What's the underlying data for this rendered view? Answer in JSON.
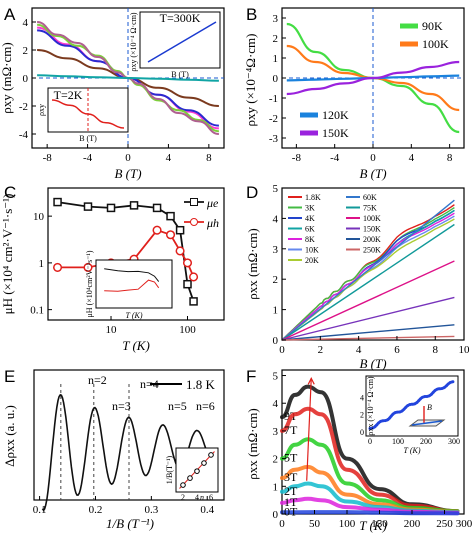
{
  "panels": {
    "A": {
      "label": "A",
      "xlabel": "B (T)",
      "ylabel": "ρxy (mΩ·cm)",
      "xticks": [
        "-8",
        "-4",
        "0",
        "4",
        "8"
      ],
      "yticks": [
        "4",
        "2",
        "0",
        "-2",
        "-4"
      ],
      "inset1": {
        "label": "T=300K",
        "xlabel": "B (T)",
        "ylabel": "ρxy (×10⁻⁴ Ω·cm)"
      },
      "inset2": {
        "label": "T=2K",
        "xlabel": "B (T)",
        "ylabel": "ρxy"
      }
    },
    "B": {
      "label": "B",
      "xlabel": "B (T)",
      "ylabel": "ρxy (×10⁻⁴Ω·cm)",
      "xticks": [
        "-8",
        "-4",
        "0",
        "4",
        "8"
      ],
      "yticks": [
        "3",
        "2",
        "1",
        "0",
        "-1",
        "-2",
        "-3"
      ]
    },
    "C": {
      "label": "C",
      "xlabel": "T (K)",
      "ylabel": "μH (×10⁴ cm²·V⁻¹·s⁻¹)",
      "xticks": [
        "10",
        "100"
      ],
      "yticks": [
        "10",
        "1",
        "0.1"
      ],
      "inset": {
        "xlabel": "T (K)",
        "ylabel": "μH (×10⁴cm²V⁻¹s⁻¹)",
        "xticks": [
          "10",
          "100"
        ]
      }
    },
    "D": {
      "label": "D",
      "xlabel": "B (T)",
      "ylabel": "ρxx (mΩ·cm)",
      "xticks": [
        "0",
        "2",
        "4",
        "6",
        "8",
        "10"
      ],
      "yticks": [
        "0",
        "1",
        "2",
        "3",
        "4",
        "5"
      ]
    },
    "E": {
      "label": "E",
      "xlabel": "1/B (T⁻¹)",
      "ylabel": "Δρxx (a. u.)",
      "xticks": [
        "0.1",
        "0.2",
        "0.3",
        "0.4"
      ],
      "scale": "1.8 K",
      "peaks": [
        "n=2",
        "n=3",
        "n=4",
        "n=5",
        "n=6"
      ],
      "inset": {
        "xlabel": "n",
        "ylabel": "1/B(T⁻¹)",
        "xticks": [
          "2",
          "4",
          "6"
        ],
        "yticks": [
          "0.4",
          "0.2"
        ]
      }
    },
    "F": {
      "label": "F",
      "xlabel": "T (K)",
      "ylabel": "ρxx (mΩ·cm)",
      "xticks": [
        "0",
        "50",
        "100",
        "150",
        "200",
        "250",
        "300"
      ],
      "yticks": [
        "0",
        "1",
        "2",
        "3",
        "4",
        "5"
      ],
      "inset": {
        "xlabel": "T (K)",
        "ylabel": "ρxx (×10⁻⁴ Ω·cm)",
        "xticks": [
          "0",
          "100",
          "200",
          "300"
        ],
        "yticks": [
          "4",
          "2",
          "0"
        ],
        "field": "B"
      }
    }
  },
  "chart_data": [
    {
      "panel": "A",
      "type": "line",
      "xlim": [
        -9.5,
        9.5
      ],
      "ylim": [
        -5,
        5
      ],
      "series": [
        {
          "color": "#7b3a1e",
          "x": [
            -9,
            -6,
            -3,
            0,
            3,
            6,
            9
          ],
          "y": [
            2.0,
            1.4,
            0.7,
            0,
            -0.7,
            -1.4,
            -2.0
          ]
        },
        {
          "color": "#ff3ad0",
          "x": [
            -9,
            -6,
            -3,
            0,
            3,
            6,
            9
          ],
          "y": [
            3.6,
            2.4,
            1.2,
            0,
            -1.2,
            -2.4,
            -3.6
          ]
        },
        {
          "color": "#2a2ad0",
          "x": [
            -9,
            -6,
            -3,
            0,
            3,
            6,
            9
          ],
          "y": [
            3.4,
            2.3,
            1.2,
            0,
            -1.2,
            -2.3,
            -3.4
          ]
        },
        {
          "color": "#7ecf3a",
          "x": [
            -9,
            -7,
            -5,
            -3,
            -1,
            0,
            1,
            3,
            5,
            7,
            9
          ],
          "y": [
            3.8,
            3.0,
            2.3,
            1.6,
            0.5,
            0,
            -0.5,
            -1.6,
            -2.3,
            -3.0,
            -3.8
          ]
        },
        {
          "color": "#b06090",
          "x": [
            -9,
            -7,
            -5,
            -3,
            -1,
            0,
            1,
            3,
            5,
            7,
            9
          ],
          "y": [
            4.0,
            3.1,
            2.5,
            1.5,
            0.4,
            0,
            -0.4,
            -1.5,
            -2.5,
            -3.1,
            -4.0
          ]
        },
        {
          "color": "#10a4a4",
          "x": [
            -9,
            -6,
            -3,
            0,
            3,
            6,
            9
          ],
          "y": [
            0.2,
            0.12,
            0.05,
            0,
            -0.05,
            -0.12,
            -0.2
          ]
        }
      ],
      "insets": [
        {
          "label": "T=300K",
          "type": "line",
          "series": [
            {
              "color": "#1a3ad0",
              "x": [
                -8,
                8
              ],
              "y": [
                -1,
                1
              ]
            }
          ]
        },
        {
          "label": "T=2K",
          "type": "line",
          "series": [
            {
              "color": "#e0201c",
              "x": [
                -8,
                -4,
                0,
                4,
                8
              ],
              "y": [
                4,
                2.5,
                0,
                -2.5,
                -4
              ]
            }
          ]
        }
      ]
    },
    {
      "panel": "B",
      "type": "line",
      "xlim": [
        -9.5,
        9.5
      ],
      "ylim": [
        -3.5,
        3.5
      ],
      "series": [
        {
          "name": "90K",
          "color": "#44dd44",
          "x": [
            -9,
            -6,
            -3,
            0,
            3,
            6,
            9
          ],
          "y": [
            2.7,
            1.3,
            0.4,
            0,
            -0.4,
            -1.3,
            -2.7
          ]
        },
        {
          "name": "100K",
          "color": "#ff7a1a",
          "x": [
            -9,
            -6,
            -3,
            0,
            3,
            6,
            9
          ],
          "y": [
            1.6,
            0.8,
            0.25,
            0,
            -0.25,
            -0.8,
            -1.6
          ]
        },
        {
          "name": "120K",
          "color": "#1a82dd",
          "x": [
            -9,
            -6,
            -3,
            0,
            3,
            6,
            9
          ],
          "y": [
            -0.12,
            -0.08,
            -0.04,
            0,
            0.04,
            0.08,
            0.12
          ]
        },
        {
          "name": "150K",
          "color": "#9a22dd",
          "x": [
            -9,
            -6,
            -3,
            0,
            3,
            6,
            9
          ],
          "y": [
            -0.8,
            -0.55,
            -0.27,
            0,
            0.27,
            0.55,
            0.8
          ]
        }
      ]
    },
    {
      "panel": "C",
      "type": "line",
      "xscale": "log",
      "yscale": "log",
      "xlim": [
        1.5,
        300
      ],
      "ylim": [
        0.06,
        40
      ],
      "series": [
        {
          "name": "μe",
          "color": "#111111",
          "x": [
            2,
            5,
            10,
            20,
            40,
            60,
            80,
            100,
            120
          ],
          "y": [
            20,
            16,
            15,
            17,
            15,
            10,
            5,
            0.35,
            0.15
          ]
        },
        {
          "name": "μh",
          "color": "#e0201c",
          "x": [
            2,
            5,
            10,
            20,
            40,
            60,
            80,
            100,
            120
          ],
          "y": [
            0.8,
            0.8,
            1.0,
            1.2,
            5,
            4,
            1.8,
            1.0,
            0.5
          ]
        }
      ]
    },
    {
      "panel": "D",
      "type": "line",
      "xlim": [
        0,
        9.5
      ],
      "ylim": [
        0,
        5
      ],
      "series": [
        {
          "name": "1.8K",
          "color": "#e0201c",
          "x": [
            0,
            2,
            4,
            6,
            8,
            9
          ],
          "y": [
            0,
            1.2,
            2.2,
            3.3,
            4.2,
            4.5
          ]
        },
        {
          "name": "3K",
          "color": "#44bb44",
          "x": [
            0,
            2,
            4,
            6,
            8,
            9
          ],
          "y": [
            0,
            1.2,
            2.2,
            3.2,
            4.1,
            4.4
          ]
        },
        {
          "name": "4K",
          "color": "#2244cc",
          "x": [
            0,
            2,
            4,
            6,
            8,
            9
          ],
          "y": [
            0,
            1.1,
            2.1,
            3.2,
            4.0,
            4.3
          ]
        },
        {
          "name": "6K",
          "color": "#11a4a4",
          "x": [
            0,
            2,
            4,
            6,
            8,
            9
          ],
          "y": [
            0,
            1.1,
            2.1,
            3.1,
            4.0,
            4.3
          ]
        },
        {
          "name": "8K",
          "color": "#dd22dd",
          "x": [
            0,
            2,
            4,
            6,
            8,
            9
          ],
          "y": [
            0,
            1.1,
            2.1,
            3.1,
            3.9,
            4.2
          ]
        },
        {
          "name": "10K",
          "color": "#6688ee",
          "x": [
            0,
            2,
            4,
            6,
            8,
            9
          ],
          "y": [
            0,
            1.0,
            2.0,
            3.0,
            3.8,
            4.1
          ]
        },
        {
          "name": "20K",
          "color": "#aacc33",
          "x": [
            0,
            2,
            4,
            6,
            8,
            9
          ],
          "y": [
            0,
            1.0,
            2.0,
            2.9,
            3.7,
            4.0
          ]
        },
        {
          "name": "60K",
          "color": "#3377cc",
          "x": [
            0,
            9
          ],
          "y": [
            0,
            4.6
          ]
        },
        {
          "name": "75K",
          "color": "#119999",
          "x": [
            0,
            9
          ],
          "y": [
            0,
            3.8
          ]
        },
        {
          "name": "100K",
          "color": "#dd1188",
          "x": [
            0,
            9
          ],
          "y": [
            0,
            2.6
          ]
        },
        {
          "name": "150K",
          "color": "#7733bb",
          "x": [
            0,
            9
          ],
          "y": [
            0,
            1.4
          ]
        },
        {
          "name": "200K",
          "color": "#225599",
          "x": [
            0,
            9
          ],
          "y": [
            0,
            0.5
          ]
        },
        {
          "name": "250K",
          "color": "#cc6666",
          "x": [
            0,
            9
          ],
          "y": [
            0,
            0.12
          ]
        }
      ]
    },
    {
      "panel": "E",
      "type": "line",
      "xlim": [
        0.09,
        0.43
      ],
      "ylim": [
        -1.3,
        1.6
      ],
      "series": [
        {
          "color": "#111111",
          "x": [
            0.11,
            0.13,
            0.14,
            0.16,
            0.18,
            0.2,
            0.23,
            0.26,
            0.29,
            0.33,
            0.36,
            0.4,
            0.42
          ],
          "y": [
            -0.2,
            1.2,
            1.1,
            -1.1,
            -0.3,
            0.45,
            -0.7,
            0.15,
            -0.6,
            0.05,
            -0.4,
            -0.15,
            -0.3
          ]
        }
      ],
      "inset": {
        "type": "scatter",
        "x": [
          2,
          3,
          4,
          5,
          6
        ],
        "y": [
          0.14,
          0.2,
          0.26,
          0.33,
          0.4
        ]
      }
    },
    {
      "panel": "F",
      "type": "line",
      "xlim": [
        0,
        280
      ],
      "ylim": [
        0,
        5.2
      ],
      "series": [
        {
          "name": "9T",
          "color": "#111111",
          "x": [
            0,
            20,
            40,
            60,
            100,
            150,
            200,
            270
          ],
          "y": [
            3.5,
            4.3,
            4.6,
            4.4,
            2.0,
            0.9,
            0.35,
            0.1
          ]
        },
        {
          "name": "7T",
          "color": "#e0201c",
          "x": [
            0,
            20,
            40,
            60,
            100,
            150,
            200,
            270
          ],
          "y": [
            3.0,
            3.6,
            3.8,
            3.6,
            1.6,
            0.7,
            0.3,
            0.1
          ]
        },
        {
          "name": "5T",
          "color": "#22cc22",
          "x": [
            0,
            20,
            40,
            60,
            100,
            150,
            200,
            270
          ],
          "y": [
            2.0,
            2.5,
            2.7,
            2.5,
            1.1,
            0.5,
            0.22,
            0.1
          ]
        },
        {
          "name": "3T",
          "color": "#ff7a1a",
          "x": [
            0,
            20,
            40,
            60,
            100,
            150,
            200,
            270
          ],
          "y": [
            1.3,
            1.6,
            1.7,
            1.5,
            0.7,
            0.35,
            0.16,
            0.08
          ]
        },
        {
          "name": "2T",
          "color": "#11bbcc",
          "x": [
            0,
            20,
            40,
            60,
            100,
            150,
            200,
            270
          ],
          "y": [
            0.8,
            1.0,
            1.1,
            1.0,
            0.45,
            0.25,
            0.12,
            0.06
          ]
        },
        {
          "name": "1T",
          "color": "#dd22dd",
          "x": [
            0,
            20,
            40,
            60,
            100,
            150,
            200,
            270
          ],
          "y": [
            0.4,
            0.5,
            0.55,
            0.5,
            0.25,
            0.15,
            0.08,
            0.04
          ]
        },
        {
          "name": "0T",
          "color": "#2244dd",
          "x": [
            0,
            50,
            100,
            150,
            200,
            270
          ],
          "y": [
            0.06,
            0.07,
            0.07,
            0.05,
            0.03,
            0.02
          ]
        }
      ],
      "inset": {
        "type": "line",
        "color": "#2244dd",
        "x": [
          0,
          50,
          100,
          150,
          200,
          250,
          300
        ],
        "y": [
          0.4,
          1.3,
          2.3,
          3.2,
          4.1,
          5.0,
          5.8
        ]
      }
    }
  ]
}
